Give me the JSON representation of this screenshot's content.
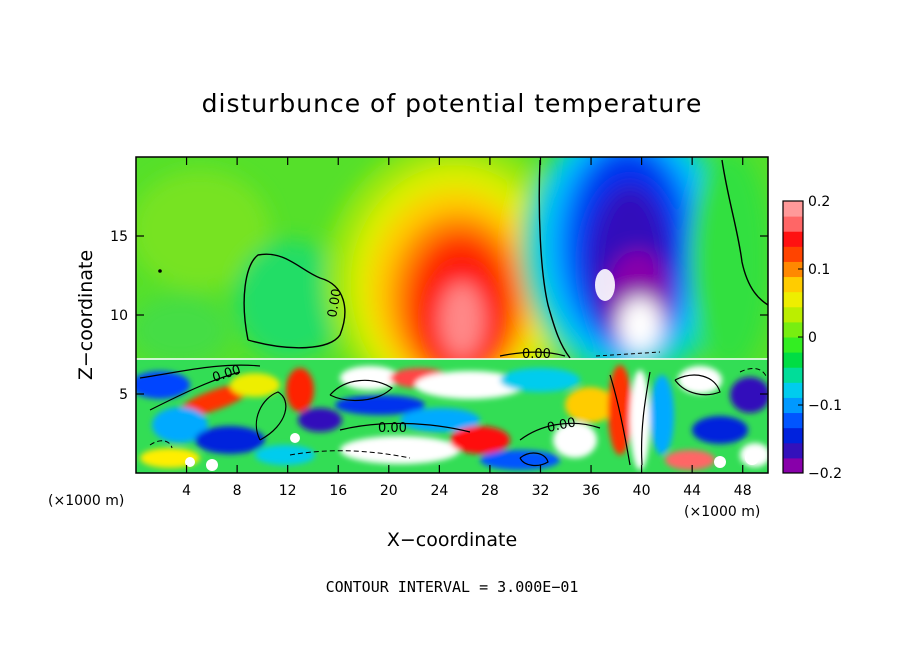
{
  "chart_data": {
    "type": "heatmap",
    "title": "disturbunce of potential temperature",
    "xlabel": "X−coordinate",
    "ylabel": "Z−coordinate",
    "x_unit_left": "(×1000 m)",
    "x_unit_right": "(×1000 m)",
    "xlim": [
      0,
      50
    ],
    "ylim": [
      0,
      20
    ],
    "xticks": [
      "4",
      "8",
      "12",
      "16",
      "20",
      "24",
      "28",
      "32",
      "36",
      "40",
      "44",
      "48"
    ],
    "yticks": [
      "5",
      "10",
      "15"
    ],
    "colorbar": {
      "range": [
        -0.2,
        0.2
      ],
      "tick_labels": [
        "0.2",
        "0.1",
        "0",
        "−0.1",
        "−0.2"
      ],
      "colors": [
        "#8800aa",
        "#3311bb",
        "#0022dd",
        "#0055ff",
        "#0099ff",
        "#00ccee",
        "#00dd99",
        "#00dd44",
        "#33ee22",
        "#77ee11",
        "#bbee00",
        "#eeee00",
        "#ffcc00",
        "#ff8800",
        "#ff4400",
        "#ff1111",
        "#ff6666",
        "#ff9999"
      ]
    },
    "contour_labels": [
      "0.00",
      "0.00",
      "0.00",
      "0.00",
      "0.00"
    ],
    "footer": "CONTOUR INTERVAL = 3.000E−01",
    "grid": false,
    "legend": "colorbar-right"
  }
}
